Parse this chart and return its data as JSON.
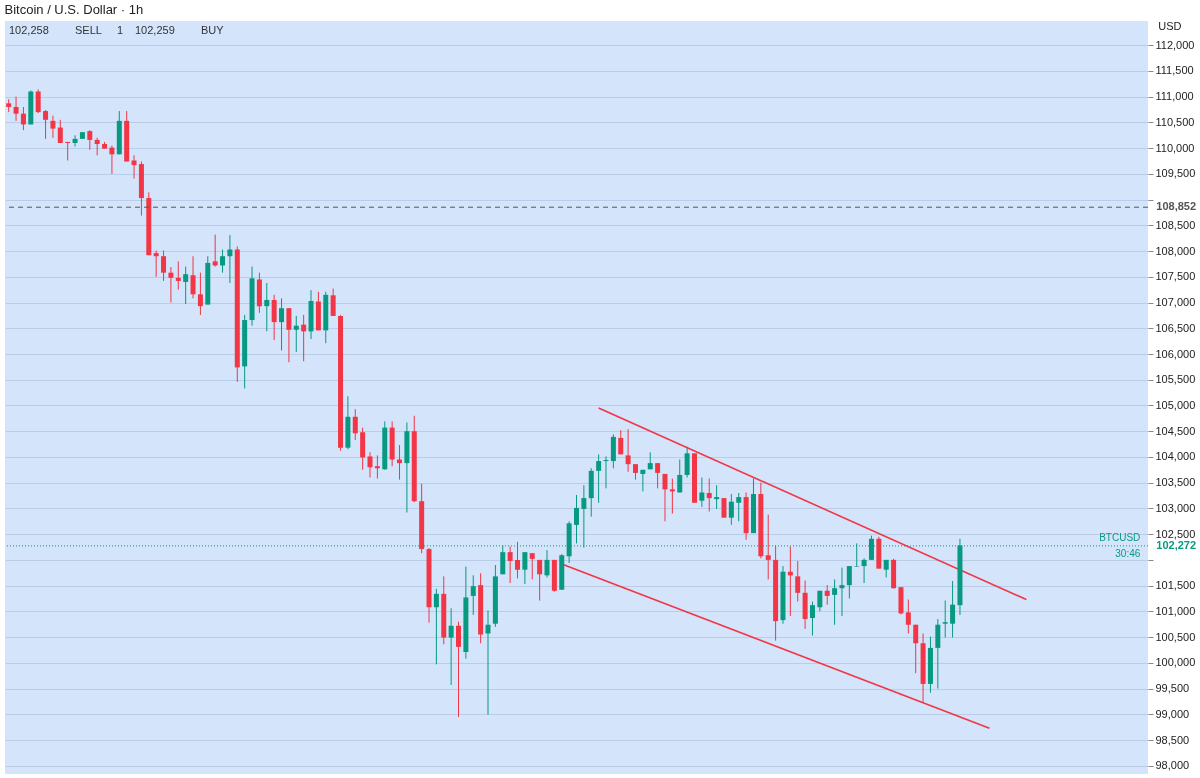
{
  "chart_data": {
    "type": "candlestick",
    "title": "Bitcoin / U.S. Dollar · 1h",
    "ylabel": "USD",
    "categories": [
      null,
      null,
      null,
      null,
      null,
      null,
      null,
      null,
      null,
      null,
      null,
      null,
      null,
      null,
      null,
      null,
      null,
      null,
      null,
      null,
      null,
      null,
      null,
      null,
      null,
      null,
      null,
      null,
      null,
      null,
      null,
      null,
      null,
      null,
      null,
      null,
      null,
      null,
      null,
      null,
      null,
      null,
      null,
      null,
      null,
      null,
      null,
      null,
      null,
      null,
      null,
      null,
      null,
      null,
      null,
      null,
      null,
      null,
      null,
      null,
      null,
      null,
      null,
      null,
      null,
      null,
      null,
      null,
      null,
      null,
      null,
      null,
      null,
      null,
      null,
      null,
      null,
      null,
      null,
      null,
      null,
      null,
      null,
      null,
      null,
      null,
      null,
      null,
      null,
      null,
      null,
      null,
      null,
      null,
      null,
      null,
      null,
      null,
      null,
      null,
      null,
      null,
      null,
      null,
      null,
      null,
      null,
      null,
      null,
      null,
      null,
      null,
      null,
      null,
      null,
      null,
      null,
      null,
      null,
      null,
      null,
      null,
      null,
      null,
      null,
      null,
      null,
      null,
      null,
      null,
      null,
      null,
      null,
      null,
      null,
      null,
      null,
      null,
      null,
      null,
      null,
      null,
      null,
      null,
      null,
      null,
      null,
      null,
      null,
      null,
      null,
      null,
      null,
      null,
      null
    ],
    "colors": [
      "#f23645",
      "#f23645",
      "#f23645",
      "#089981",
      "#f23645",
      "#f23645",
      "#f23645",
      "#f23645",
      "#f23645",
      "#089981",
      "#089981",
      "#f23645",
      "#f23645",
      "#f23645",
      "#f23645",
      "#089981",
      "#f23645",
      "#f23645",
      "#f23645",
      "#f23645",
      "#f23645",
      "#f23645",
      "#f23645",
      "#f23645",
      "#089981",
      "#f23645",
      "#f23645",
      "#089981",
      "#f23645",
      "#089981",
      "#089981",
      "#f23645",
      "#089981",
      "#089981",
      "#f23645",
      "#089981",
      "#f23645",
      "#089981",
      "#f23645",
      "#089981",
      "#f23645",
      "#089981",
      "#f23645",
      "#089981",
      "#f23645",
      "#f23645",
      "#089981",
      "#f23645",
      "#f23645",
      "#f23645",
      "#f23645",
      "#089981",
      "#f23645",
      "#f23645",
      "#089981",
      "#f23645",
      "#f23645",
      "#f23645",
      "#089981",
      "#f23645",
      "#089981",
      "#f23645",
      "#089981",
      "#089981",
      "#f23645",
      "#089981",
      "#089981",
      "#089981",
      "#f23645",
      "#f23645",
      "#089981",
      "#f23645",
      "#f23645",
      "#089981",
      "#f23645",
      "#089981",
      "#089981",
      "#089981",
      "#089981",
      "#089981",
      "#089981",
      "#089981",
      "#089981",
      "#f23645",
      "#f23645",
      "#f23645",
      "#089981",
      "#089981",
      "#f23645",
      "#f23645",
      "#f23645",
      "#089981",
      "#089981",
      "#f23645",
      "#089981",
      "#f23645",
      "#089981",
      "#f23645",
      "#089981",
      "#089981",
      "#f23645",
      "#089981",
      "#f23645",
      "#f23645",
      "#f23645",
      "#089981",
      "#f23645",
      "#f23645",
      "#f23645",
      "#089981",
      "#089981",
      "#f23645",
      "#089981",
      "#089981",
      "#089981",
      "#089981",
      "#089981",
      "#089981",
      "#f23645",
      "#089981",
      "#f23645",
      "#f23645",
      "#f23645",
      "#f23645",
      "#f23645",
      "#089981",
      "#089981",
      "#089981",
      "#089981",
      "#089981",
      null,
      null,
      null,
      null,
      null,
      null,
      null,
      null,
      null,
      null,
      null,
      null,
      null,
      null,
      null,
      null,
      null,
      null,
      null,
      null,
      null,
      null,
      null,
      null,
      null
    ],
    "ohlc": [
      [
        110870,
        110950,
        110700,
        110800
      ],
      [
        110800,
        111000,
        110530,
        110670
      ],
      [
        110670,
        110800,
        110350,
        110460
      ],
      [
        110460,
        111120,
        110460,
        111100
      ],
      [
        111100,
        111140,
        110680,
        110700
      ],
      [
        110720,
        110740,
        110180,
        110550
      ],
      [
        110530,
        110630,
        110200,
        110380
      ],
      [
        110400,
        110550,
        110100,
        110100
      ],
      [
        110120,
        110120,
        109760,
        110100
      ],
      [
        110100,
        110250,
        110030,
        110180
      ],
      [
        110180,
        110310,
        110180,
        110310
      ],
      [
        110330,
        110350,
        109970,
        110160
      ],
      [
        110160,
        110200,
        109860,
        110080
      ],
      [
        110080,
        110120,
        109990,
        109990
      ],
      [
        110010,
        110050,
        109500,
        109880
      ],
      [
        109880,
        110720,
        109880,
        110530
      ],
      [
        110530,
        110720,
        109740,
        109740
      ],
      [
        109760,
        109860,
        109410,
        109670
      ],
      [
        109690,
        109740,
        108690,
        109030
      ],
      [
        109030,
        109140,
        107920,
        107920
      ],
      [
        107960,
        108010,
        107500,
        107900
      ],
      [
        107900,
        108010,
        107420,
        107580
      ],
      [
        107580,
        107690,
        107000,
        107480
      ],
      [
        107480,
        107800,
        107250,
        107420
      ],
      [
        107400,
        107700,
        106970,
        107550
      ],
      [
        107530,
        107900,
        107080,
        107160
      ],
      [
        107160,
        107580,
        106760,
        106930
      ],
      [
        106960,
        107900,
        106960,
        107770
      ],
      [
        107800,
        108320,
        107700,
        107720
      ],
      [
        107720,
        108030,
        107580,
        107900
      ],
      [
        107900,
        108310,
        107380,
        108030
      ],
      [
        108030,
        108090,
        105460,
        105740
      ],
      [
        105760,
        106760,
        105330,
        106660
      ],
      [
        106660,
        107700,
        106550,
        107470
      ],
      [
        107450,
        107580,
        106800,
        106930
      ],
      [
        106930,
        107380,
        106440,
        107050
      ],
      [
        107050,
        107150,
        106270,
        106620
      ],
      [
        106620,
        107080,
        106070,
        106890
      ],
      [
        106890,
        106890,
        105840,
        106470
      ],
      [
        106470,
        106740,
        106040,
        106550
      ],
      [
        106570,
        106760,
        105860,
        106440
      ],
      [
        106440,
        107240,
        106290,
        107030
      ],
      [
        107020,
        107210,
        106460,
        106460
      ],
      [
        106460,
        107210,
        106210,
        107150
      ],
      [
        107140,
        107270,
        106740,
        106740
      ],
      [
        106740,
        106760,
        104120,
        104180
      ],
      [
        104180,
        105180,
        104150,
        104780
      ],
      [
        104780,
        104930,
        104330,
        104460
      ],
      [
        104480,
        104570,
        103750,
        103990
      ],
      [
        104010,
        104090,
        103600,
        103800
      ],
      [
        103820,
        104030,
        103580,
        103780
      ],
      [
        103760,
        104690,
        103750,
        104570
      ],
      [
        104570,
        104690,
        103820,
        103950
      ],
      [
        103950,
        104230,
        103560,
        103880
      ],
      [
        103880,
        104670,
        102920,
        104500
      ],
      [
        104500,
        104800,
        103120,
        103140
      ],
      [
        103140,
        103480,
        102130,
        102210
      ],
      [
        102210,
        102230,
        100780,
        101080
      ],
      [
        101080,
        101440,
        99970,
        101340
      ],
      [
        101340,
        101680,
        100360,
        100490
      ],
      [
        100490,
        101060,
        99570,
        100720
      ],
      [
        100720,
        100800,
        98950,
        100310
      ],
      [
        100210,
        101870,
        100080,
        101270
      ],
      [
        101300,
        101700,
        100930,
        101490
      ],
      [
        101510,
        101740,
        100380,
        100550
      ],
      [
        100570,
        101020,
        98990,
        100740
      ],
      [
        100760,
        101900,
        100700,
        101680
      ],
      [
        101720,
        102280,
        101720,
        102150
      ],
      [
        102150,
        102260,
        101550,
        101980
      ],
      [
        102000,
        102350,
        101640,
        101810
      ],
      [
        101810,
        102150,
        101530,
        102150
      ],
      [
        102130,
        102130,
        101620,
        102020
      ],
      [
        102000,
        102000,
        101210,
        101720
      ],
      [
        101700,
        102190,
        101660,
        102000
      ],
      [
        102000,
        102000,
        101380,
        101400
      ],
      [
        101420,
        102110,
        101420,
        102090
      ],
      [
        102070,
        102750,
        101940,
        102710
      ],
      [
        102680,
        103260,
        102320,
        103010
      ],
      [
        102990,
        103450,
        102240,
        103200
      ],
      [
        103200,
        103780,
        102840,
        103730
      ],
      [
        103730,
        104050,
        103110,
        103920
      ],
      [
        103920,
        104010,
        103390,
        103940
      ],
      [
        103920,
        104440,
        103780,
        104390
      ],
      [
        104370,
        104520,
        104050,
        104050
      ],
      [
        104030,
        104540,
        103710,
        103860
      ],
      [
        103860,
        103860,
        103560,
        103690
      ],
      [
        103670,
        103750,
        103330,
        103750
      ],
      [
        103760,
        104090,
        103760,
        103880
      ],
      [
        103880,
        103880,
        103390,
        103690
      ],
      [
        103670,
        103670,
        102750,
        103370
      ],
      [
        103370,
        103580,
        102900,
        103330
      ],
      [
        103310,
        103950,
        103310,
        103650
      ],
      [
        103650,
        104200,
        103600,
        104070
      ],
      [
        104070,
        104070,
        103110,
        103110
      ],
      [
        103150,
        103600,
        103030,
        103310
      ],
      [
        103300,
        103580,
        102940,
        103200
      ],
      [
        103180,
        103450,
        102990,
        103220
      ],
      [
        103200,
        103200,
        102820,
        102820
      ],
      [
        102820,
        103280,
        102680,
        103130
      ],
      [
        103110,
        103300,
        102750,
        103220
      ],
      [
        103220,
        103310,
        102390,
        102520
      ],
      [
        102520,
        103580,
        102520,
        103280
      ],
      [
        103280,
        103500,
        102030,
        102070
      ],
      [
        102090,
        102880,
        101620,
        102000
      ],
      [
        102000,
        102280,
        100430,
        100810
      ],
      [
        100830,
        101880,
        100760,
        101770
      ],
      [
        101770,
        102260,
        100910,
        101700
      ],
      [
        101680,
        101980,
        101190,
        101360
      ],
      [
        101360,
        101600,
        100660,
        100850
      ],
      [
        100870,
        101190,
        100530,
        101120
      ],
      [
        101080,
        101400,
        101000,
        101400
      ],
      [
        101400,
        101510,
        101130,
        101300
      ],
      [
        101320,
        101620,
        100740,
        101450
      ],
      [
        101450,
        101850,
        100910,
        101510
      ],
      [
        101510,
        101880,
        101250,
        101880
      ],
      [
        101870,
        102320,
        101870,
        101880
      ],
      [
        101880,
        102030,
        101550,
        102000
      ],
      [
        102000,
        102470,
        102000,
        102410
      ],
      [
        102410,
        102450,
        101830,
        101830
      ],
      [
        101810,
        102000,
        101660,
        102000
      ],
      [
        102000,
        102020,
        101440,
        101450
      ],
      [
        101470,
        101470,
        100940,
        100960
      ],
      [
        100980,
        101230,
        100570,
        100740
      ],
      [
        100740,
        100740,
        99800,
        100380
      ],
      [
        100380,
        100570,
        99240,
        99590
      ],
      [
        99590,
        100510,
        99420,
        100290
      ],
      [
        100290,
        100850,
        99500,
        100740
      ],
      [
        100760,
        101210,
        100490,
        100790
      ],
      [
        100760,
        101590,
        100490,
        101130
      ],
      [
        101120,
        102410,
        100930,
        102280
      ],
      null,
      null,
      null,
      null,
      null,
      null,
      null,
      null,
      null,
      null,
      null,
      null,
      null,
      null,
      null,
      null,
      null,
      null,
      null,
      null,
      null,
      null,
      null,
      null,
      null
    ],
    "series": [
      {
        "type": "line",
        "color": "#f23645",
        "values": [
          null,
          null,
          null,
          null,
          null,
          null,
          null,
          null,
          null,
          null,
          null,
          null,
          null,
          null,
          null,
          null,
          null,
          null,
          null,
          null,
          null,
          null,
          null,
          null,
          null,
          null,
          null,
          null,
          null,
          null,
          null,
          null,
          null,
          null,
          null,
          null,
          null,
          null,
          null,
          null,
          null,
          null,
          null,
          null,
          null,
          null,
          null,
          null,
          null,
          null,
          null,
          null,
          null,
          null,
          null,
          null,
          null,
          null,
          null,
          null,
          null,
          null,
          null,
          null,
          null,
          null,
          null,
          null,
          null,
          null,
          null,
          null,
          null,
          null,
          null,
          null,
          null,
          null,
          null,
          null,
          104950,
          null,
          null,
          null,
          null,
          null,
          null,
          null,
          null,
          null,
          null,
          null,
          null,
          null,
          null,
          null,
          null,
          null,
          null,
          null,
          null,
          null,
          null,
          null,
          null,
          null,
          null,
          null,
          null,
          null,
          null,
          null,
          null,
          null,
          null,
          null,
          null,
          null,
          null,
          null,
          null,
          null,
          null,
          null,
          null,
          null,
          null,
          null,
          null,
          null,
          null,
          null,
          null,
          null,
          null,
          null,
          null,
          null,
          101230,
          null,
          null,
          null,
          null,
          null,
          null,
          null,
          null,
          null,
          null,
          null,
          null,
          null,
          null,
          null,
          null
        ]
      },
      {
        "type": "line",
        "color": "#f23645",
        "values": [
          null,
          null,
          null,
          null,
          null,
          null,
          null,
          null,
          null,
          null,
          null,
          null,
          null,
          null,
          null,
          null,
          null,
          null,
          null,
          null,
          null,
          null,
          null,
          null,
          null,
          null,
          null,
          null,
          null,
          null,
          null,
          null,
          null,
          null,
          null,
          null,
          null,
          null,
          null,
          null,
          null,
          null,
          null,
          null,
          null,
          null,
          null,
          null,
          null,
          null,
          null,
          null,
          null,
          null,
          null,
          null,
          null,
          null,
          null,
          null,
          null,
          null,
          null,
          null,
          null,
          null,
          null,
          null,
          null,
          null,
          null,
          null,
          null,
          null,
          null,
          101920,
          null,
          null,
          null,
          null,
          null,
          null,
          null,
          null,
          null,
          null,
          null,
          null,
          null,
          null,
          null,
          null,
          null,
          null,
          null,
          null,
          null,
          null,
          null,
          null,
          null,
          null,
          null,
          null,
          null,
          null,
          null,
          null,
          null,
          null,
          null,
          null,
          null,
          null,
          null,
          null,
          null,
          null,
          null,
          null,
          null,
          null,
          null,
          null,
          null,
          null,
          null,
          null,
          null,
          null,
          null,
          null,
          null,
          98730,
          null,
          null,
          null,
          null,
          null,
          null,
          null,
          null,
          null,
          null,
          null,
          null,
          null,
          null,
          null,
          null,
          null,
          null,
          null,
          null,
          null
        ]
      }
    ],
    "ylim": [
      97840,
      112470
    ],
    "yticks": [
      {
        "value": 98000,
        "label": "98,000"
      },
      {
        "value": 98500,
        "label": "98,500"
      },
      {
        "value": 99000,
        "label": "99,000"
      },
      {
        "value": 99500,
        "label": "99,500"
      },
      {
        "value": 100000,
        "label": "100,000"
      },
      {
        "value": 100500,
        "label": "100,500"
      },
      {
        "value": 101000,
        "label": "101,000"
      },
      {
        "value": 101500,
        "label": "101,500"
      },
      {
        "value": 102000,
        "label": null
      },
      {
        "value": 102500,
        "label": "102,500"
      },
      {
        "value": 103000,
        "label": "103,000"
      },
      {
        "value": 103500,
        "label": "103,500"
      },
      {
        "value": 104000,
        "label": "104,000"
      },
      {
        "value": 104500,
        "label": "104,500"
      },
      {
        "value": 105000,
        "label": "105,000"
      },
      {
        "value": 105500,
        "label": "105,500"
      },
      {
        "value": 106000,
        "label": "106,000"
      },
      {
        "value": 106500,
        "label": "106,500"
      },
      {
        "value": 107000,
        "label": "107,000"
      },
      {
        "value": 107500,
        "label": "107,500"
      },
      {
        "value": 108000,
        "label": "108,000"
      },
      {
        "value": 108500,
        "label": "108,500"
      },
      {
        "value": 109000,
        "label": null
      },
      {
        "value": 109500,
        "label": "109,500"
      },
      {
        "value": 110000,
        "label": "110,000"
      },
      {
        "value": 110500,
        "label": "110,500"
      },
      {
        "value": 111000,
        "label": "111,000"
      },
      {
        "value": 111500,
        "label": "111,500"
      },
      {
        "value": 112000,
        "label": "112,000"
      }
    ],
    "grid": "y",
    "tick_labels": "y",
    "ref_lines": [
      {
        "axis": "y",
        "value": 108852,
        "label": "108,852",
        "color": "#555555",
        "line_style": "dashed"
      },
      {
        "axis": "y",
        "value": 102272,
        "label": "102,272",
        "color": "#089981",
        "line_style": "dotted"
      }
    ],
    "annotations": [
      "102,258",
      "SELL",
      "1",
      "102,259",
      "BUY",
      {
        "text": "BTCUSD",
        "y": 102272
      },
      {
        "text": "30:46",
        "y": 102272
      }
    ]
  }
}
